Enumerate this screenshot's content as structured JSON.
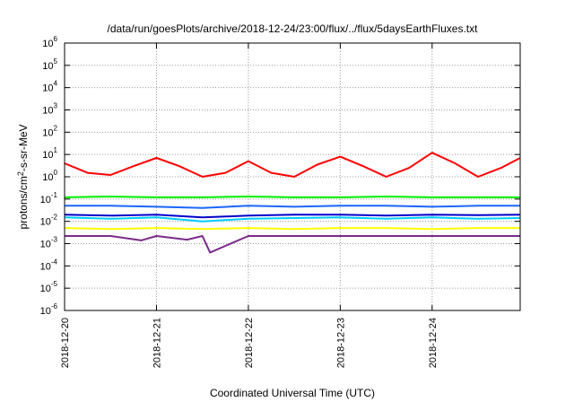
{
  "chart_data": {
    "type": "line",
    "title": "/data/run/goesPlots/archive/2018-12-24/23:00/flux/../flux/5daysEarthFluxes.txt",
    "xlabel": "Coordinated Universal Time (UTC)",
    "ylabel_base": "protons/cm",
    "ylabel_sup": "2",
    "ylabel_rest": "-s-sr-MeV",
    "y_scale": "log",
    "ylim": [
      1e-06,
      1000000
    ],
    "y_ticks": [
      {
        "base": "10",
        "exp": "-6"
      },
      {
        "base": "10",
        "exp": "-5"
      },
      {
        "base": "10",
        "exp": "-4"
      },
      {
        "base": "10",
        "exp": "-3"
      },
      {
        "base": "10",
        "exp": "-2"
      },
      {
        "base": "10",
        "exp": "-1"
      },
      {
        "base": "10",
        "exp": "0"
      },
      {
        "base": "10",
        "exp": "1"
      },
      {
        "base": "10",
        "exp": "2"
      },
      {
        "base": "10",
        "exp": "3"
      },
      {
        "base": "10",
        "exp": "4"
      },
      {
        "base": "10",
        "exp": "5"
      },
      {
        "base": "10",
        "exp": "6"
      }
    ],
    "x_ticks": [
      "2018-12-20",
      "2018-12-21",
      "2018-12-22",
      "2018-12-23",
      "2018-12-24"
    ],
    "xlim": [
      "2018-12-20",
      "2018-12-24 23:00"
    ],
    "grid": true,
    "series": [
      {
        "color": "#ff0000",
        "x": [
          "2018-12-20 00:00",
          "2018-12-20 06:00",
          "2018-12-20 12:00",
          "2018-12-20 18:00",
          "2018-12-21 00:00",
          "2018-12-21 06:00",
          "2018-12-21 12:00",
          "2018-12-21 18:00",
          "2018-12-22 00:00",
          "2018-12-22 06:00",
          "2018-12-22 12:00",
          "2018-12-22 18:00",
          "2018-12-23 00:00",
          "2018-12-23 06:00",
          "2018-12-23 12:00",
          "2018-12-23 18:00",
          "2018-12-24 00:00",
          "2018-12-24 06:00",
          "2018-12-24 12:00",
          "2018-12-24 18:00",
          "2018-12-24 23:00"
        ],
        "y": [
          4.0,
          1.5,
          1.2,
          3.0,
          7.0,
          3.0,
          1.0,
          1.5,
          5.0,
          1.5,
          1.0,
          3.5,
          8.0,
          3.0,
          1.0,
          2.5,
          12.0,
          4.0,
          1.0,
          2.5,
          7.0
        ]
      },
      {
        "color": "#00ee00",
        "x": [
          "2018-12-20 00:00",
          "2018-12-20 12:00",
          "2018-12-21 00:00",
          "2018-12-21 12:00",
          "2018-12-22 00:00",
          "2018-12-22 12:00",
          "2018-12-23 00:00",
          "2018-12-23 12:00",
          "2018-12-24 00:00",
          "2018-12-24 12:00",
          "2018-12-24 23:00"
        ],
        "y": [
          0.12,
          0.13,
          0.12,
          0.12,
          0.13,
          0.12,
          0.12,
          0.13,
          0.12,
          0.12,
          0.12
        ]
      },
      {
        "color": "#00ccff",
        "x": [
          "2018-12-20 00:00",
          "2018-12-20 12:00",
          "2018-12-21 00:00",
          "2018-12-21 12:00",
          "2018-12-22 00:00",
          "2018-12-22 12:00",
          "2018-12-23 00:00",
          "2018-12-23 12:00",
          "2018-12-24 00:00",
          "2018-12-24 12:00",
          "2018-12-24 23:00"
        ],
        "y": [
          0.015,
          0.013,
          0.015,
          0.01,
          0.013,
          0.014,
          0.015,
          0.013,
          0.015,
          0.013,
          0.014
        ]
      },
      {
        "color": "#1a66ff",
        "x": [
          "2018-12-20 00:00",
          "2018-12-20 12:00",
          "2018-12-21 00:00",
          "2018-12-21 12:00",
          "2018-12-22 00:00",
          "2018-12-22 12:00",
          "2018-12-23 00:00",
          "2018-12-23 12:00",
          "2018-12-24 00:00",
          "2018-12-24 12:00",
          "2018-12-24 23:00"
        ],
        "y": [
          0.05,
          0.05,
          0.045,
          0.04,
          0.05,
          0.045,
          0.05,
          0.05,
          0.045,
          0.05,
          0.05
        ]
      },
      {
        "color": "#0000cc",
        "x": [
          "2018-12-20 00:00",
          "2018-12-20 12:00",
          "2018-12-21 00:00",
          "2018-12-21 12:00",
          "2018-12-22 00:00",
          "2018-12-22 12:00",
          "2018-12-23 00:00",
          "2018-12-23 12:00",
          "2018-12-24 00:00",
          "2018-12-24 12:00",
          "2018-12-24 23:00"
        ],
        "y": [
          0.02,
          0.018,
          0.02,
          0.015,
          0.018,
          0.02,
          0.02,
          0.018,
          0.02,
          0.019,
          0.02
        ]
      },
      {
        "color": "#ffff00",
        "x": [
          "2018-12-20 00:00",
          "2018-12-20 12:00",
          "2018-12-21 00:00",
          "2018-12-21 12:00",
          "2018-12-22 00:00",
          "2018-12-22 12:00",
          "2018-12-23 00:00",
          "2018-12-23 12:00",
          "2018-12-24 00:00",
          "2018-12-24 12:00",
          "2018-12-24 23:00"
        ],
        "y": [
          0.005,
          0.0045,
          0.005,
          0.0045,
          0.005,
          0.0045,
          0.005,
          0.005,
          0.0045,
          0.005,
          0.005
        ]
      },
      {
        "color": "#7a2a8a",
        "x": [
          "2018-12-20 00:00",
          "2018-12-20 12:00",
          "2018-12-20 20:00",
          "2018-12-21 00:00",
          "2018-12-21 08:00",
          "2018-12-21 12:00",
          "2018-12-21 14:00",
          "2018-12-22 00:00",
          "2018-12-22 12:00",
          "2018-12-23 00:00",
          "2018-12-23 12:00",
          "2018-12-24 00:00",
          "2018-12-24 12:00",
          "2018-12-24 23:00"
        ],
        "y": [
          0.0022,
          0.0022,
          0.0014,
          0.0022,
          0.0015,
          0.0022,
          0.0004,
          0.0022,
          0.0022,
          0.0022,
          0.0022,
          0.0022,
          0.0022,
          0.0022
        ]
      }
    ]
  }
}
